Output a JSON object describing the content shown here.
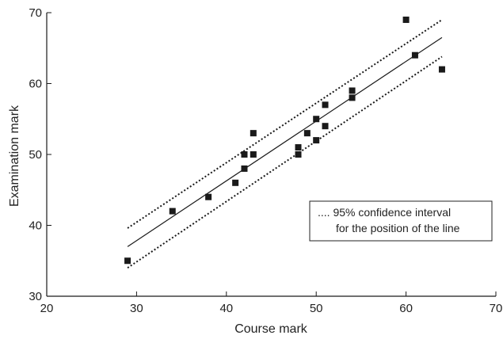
{
  "chart_data": {
    "type": "scatter",
    "xlabel": "Course mark",
    "ylabel": "Examination mark",
    "xlim": [
      20,
      70
    ],
    "ylim": [
      30,
      70
    ],
    "x_ticks": [
      20,
      30,
      40,
      50,
      60,
      70
    ],
    "y_ticks": [
      30,
      40,
      50,
      60,
      70
    ],
    "grid": false,
    "points": [
      {
        "x": 29,
        "y": 35
      },
      {
        "x": 34,
        "y": 42
      },
      {
        "x": 38,
        "y": 44
      },
      {
        "x": 41,
        "y": 46
      },
      {
        "x": 42,
        "y": 48
      },
      {
        "x": 42,
        "y": 50
      },
      {
        "x": 43,
        "y": 50
      },
      {
        "x": 43,
        "y": 53
      },
      {
        "x": 48,
        "y": 50
      },
      {
        "x": 48,
        "y": 51
      },
      {
        "x": 49,
        "y": 53
      },
      {
        "x": 50,
        "y": 52
      },
      {
        "x": 50,
        "y": 55
      },
      {
        "x": 51,
        "y": 54
      },
      {
        "x": 51,
        "y": 57
      },
      {
        "x": 54,
        "y": 58
      },
      {
        "x": 54,
        "y": 59
      },
      {
        "x": 60,
        "y": 69
      },
      {
        "x": 61,
        "y": 64
      },
      {
        "x": 64,
        "y": 62
      }
    ],
    "regression_line": {
      "x": [
        29,
        64
      ],
      "y": [
        37.0,
        66.5
      ]
    },
    "ci_upper": {
      "x": [
        29,
        64
      ],
      "y": [
        39.6,
        69.0
      ]
    },
    "ci_lower": {
      "x": [
        29,
        64
      ],
      "y": [
        34.0,
        63.8
      ]
    },
    "legend": {
      "placement": "right",
      "line1": ".... 95% confidence interval",
      "line2": "for the position of the line"
    },
    "colors": {
      "marker": "#1a1a1a",
      "line": "#1a1a1a"
    }
  }
}
